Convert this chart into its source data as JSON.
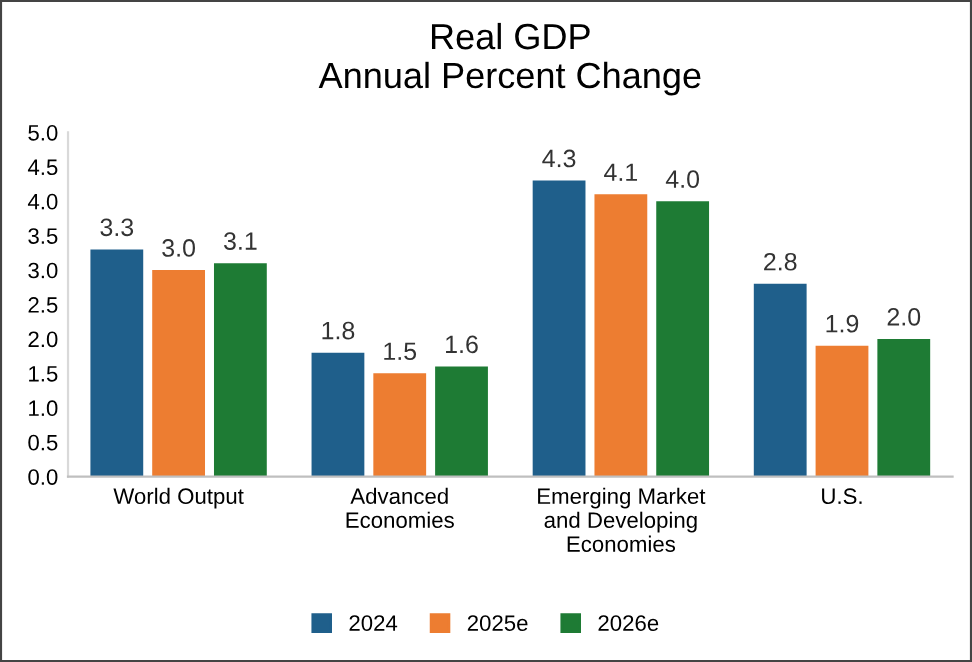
{
  "chart_data": {
    "type": "bar",
    "title": "Real GDP\nAnnual Percent Change",
    "categories": [
      "World Output",
      "Advanced\nEconomies",
      "Emerging Market\nand Developing\nEconomies",
      "U.S."
    ],
    "series": [
      {
        "name": "2024",
        "color": "#1f5f8b",
        "values": [
          3.3,
          1.8,
          4.3,
          2.8
        ],
        "value_labels": [
          "3.3",
          "1.8",
          "4.3",
          "2.8"
        ]
      },
      {
        "name": "2025e",
        "color": "#ed7d31",
        "values": [
          3.0,
          1.5,
          4.1,
          1.9
        ],
        "value_labels": [
          "3.0",
          "1.5",
          "4.1",
          "1.9"
        ]
      },
      {
        "name": "2026e",
        "color": "#1e7b34",
        "values": [
          3.1,
          1.6,
          4.0,
          2.0
        ],
        "value_labels": [
          "3.1",
          "1.6",
          "4.0",
          "2.0"
        ]
      }
    ],
    "ylim": [
      0,
      5
    ],
    "yticks": [
      {
        "value": 0,
        "label": "0.0"
      },
      {
        "value": 0.5,
        "label": "0.5"
      },
      {
        "value": 1,
        "label": "1.0"
      },
      {
        "value": 1.5,
        "label": "1.5"
      },
      {
        "value": 2,
        "label": "2.0"
      },
      {
        "value": 2.5,
        "label": "2.5"
      },
      {
        "value": 3,
        "label": "3.0"
      },
      {
        "value": 3.5,
        "label": "3.5"
      },
      {
        "value": 4,
        "label": "4.0"
      },
      {
        "value": 4.5,
        "label": "4.5"
      },
      {
        "value": 5,
        "label": "5.0"
      }
    ],
    "grid": false,
    "legend": "bottom"
  }
}
